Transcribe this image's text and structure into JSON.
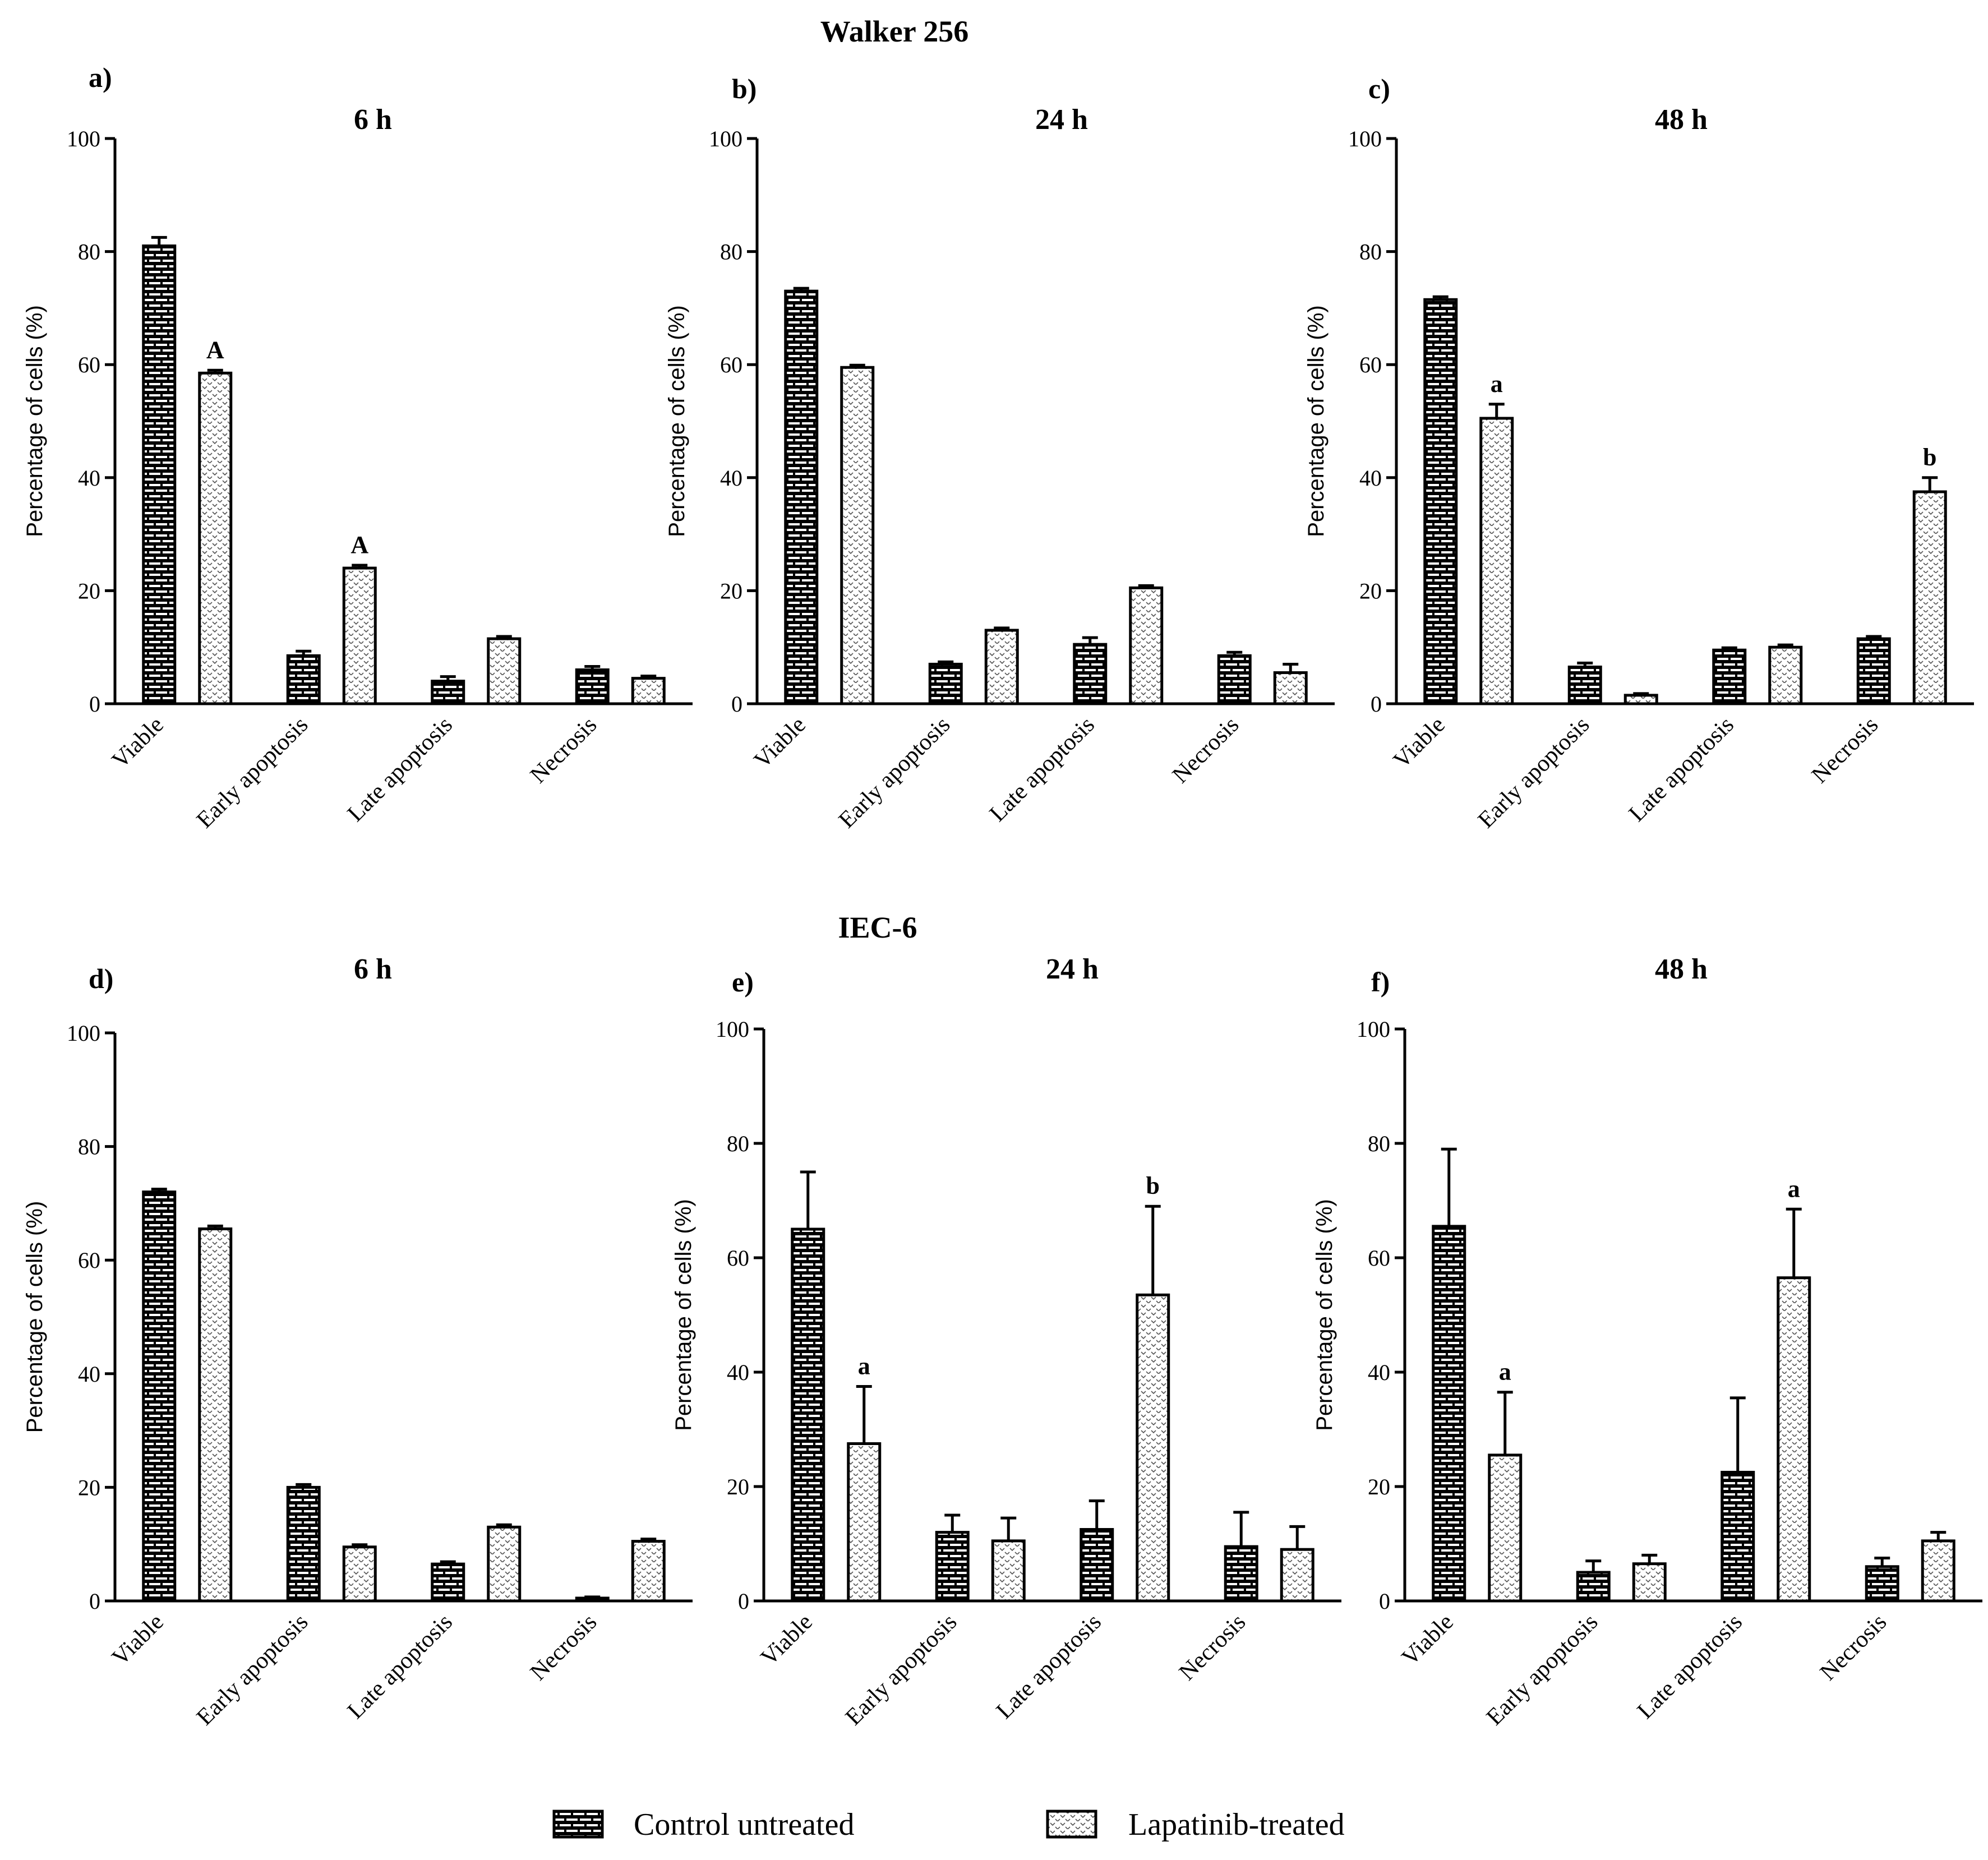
{
  "titles": {
    "top_group": "Walker 256",
    "bottom_group": "IEC-6"
  },
  "legend": {
    "control": "Control untreated",
    "treated": "Lapatinib-treated"
  },
  "colors": {
    "ink": "#000000",
    "background": "#ffffff"
  },
  "chart_data": [
    {
      "panel": "a)",
      "title": "6 h",
      "type": "bar",
      "ylabel": "Percentage of cells (%)",
      "ylim": [
        0,
        100
      ],
      "yticks": [
        0,
        20,
        40,
        60,
        80,
        100
      ],
      "categories": [
        "Viable",
        "Early apoptosis",
        "Late apoptosis",
        "Necrosis"
      ],
      "series": [
        {
          "name": "Control untreated",
          "values": [
            81,
            8.5,
            4,
            6
          ],
          "errors": [
            1.5,
            0.8,
            0.8,
            0.6
          ]
        },
        {
          "name": "Lapatinib-treated",
          "values": [
            58.5,
            24,
            11.5,
            4.5
          ],
          "errors": [
            0.5,
            0.5,
            0.4,
            0.4
          ]
        }
      ],
      "annotations": [
        {
          "series": 1,
          "category": 0,
          "text": "A"
        },
        {
          "series": 1,
          "category": 1,
          "text": "A"
        }
      ]
    },
    {
      "panel": "b)",
      "title": "24 h",
      "type": "bar",
      "ylabel": "Percentage of cells (%)",
      "ylim": [
        0,
        100
      ],
      "yticks": [
        0,
        20,
        40,
        60,
        80,
        100
      ],
      "categories": [
        "Viable",
        "Early apoptosis",
        "Late apoptosis",
        "Necrosis"
      ],
      "series": [
        {
          "name": "Control untreated",
          "values": [
            73,
            7,
            10.5,
            8.5
          ],
          "errors": [
            0.5,
            0.4,
            1.2,
            0.6
          ]
        },
        {
          "name": "Lapatinib-treated",
          "values": [
            59.5,
            13,
            20.5,
            5.5
          ],
          "errors": [
            0.4,
            0.4,
            0.4,
            1.5
          ]
        }
      ],
      "annotations": []
    },
    {
      "panel": "c)",
      "title": "48 h",
      "type": "bar",
      "ylabel": "Percentage of cells (%)",
      "ylim": [
        0,
        100
      ],
      "yticks": [
        0,
        20,
        40,
        60,
        80,
        100
      ],
      "categories": [
        "Viable",
        "Early apoptosis",
        "Late apoptosis",
        "Necrosis"
      ],
      "series": [
        {
          "name": "Control untreated",
          "values": [
            71.5,
            6.5,
            9.5,
            11.5
          ],
          "errors": [
            0.5,
            0.7,
            0.4,
            0.4
          ]
        },
        {
          "name": "Lapatinib-treated",
          "values": [
            50.5,
            1.5,
            10,
            37.5
          ],
          "errors": [
            2.5,
            0.3,
            0.4,
            2.5
          ]
        }
      ],
      "annotations": [
        {
          "series": 1,
          "category": 0,
          "text": "a"
        },
        {
          "series": 1,
          "category": 3,
          "text": "b"
        }
      ]
    },
    {
      "panel": "d)",
      "title": "6 h",
      "type": "bar",
      "ylabel": "Percentage of cells (%)",
      "ylim": [
        0,
        100
      ],
      "yticks": [
        0,
        20,
        40,
        60,
        80,
        100
      ],
      "categories": [
        "Viable",
        "Early apoptosis",
        "Late apoptosis",
        "Necrosis"
      ],
      "series": [
        {
          "name": "Control untreated",
          "values": [
            72,
            20,
            6.5,
            0.5
          ],
          "errors": [
            0.5,
            0.5,
            0.4,
            0.2
          ]
        },
        {
          "name": "Lapatinib-treated",
          "values": [
            65.5,
            9.5,
            13,
            10.5
          ],
          "errors": [
            0.5,
            0.4,
            0.4,
            0.4
          ]
        }
      ],
      "annotations": []
    },
    {
      "panel": "e)",
      "title": "24 h",
      "type": "bar",
      "ylabel": "Percentage of cells (%)",
      "ylim": [
        0,
        100
      ],
      "yticks": [
        0,
        20,
        40,
        60,
        80,
        100
      ],
      "categories": [
        "Viable",
        "Early apoptosis",
        "Late apoptosis",
        "Necrosis"
      ],
      "series": [
        {
          "name": "Control untreated",
          "values": [
            65,
            12,
            12.5,
            9.5
          ],
          "errors": [
            10,
            3,
            5,
            6
          ]
        },
        {
          "name": "Lapatinib-treated",
          "values": [
            27.5,
            10.5,
            53.5,
            9
          ],
          "errors": [
            10,
            4,
            15.5,
            4
          ]
        }
      ],
      "annotations": [
        {
          "series": 1,
          "category": 0,
          "text": "a"
        },
        {
          "series": 1,
          "category": 2,
          "text": "b"
        }
      ]
    },
    {
      "panel": "f)",
      "title": "48 h",
      "type": "bar",
      "ylabel": "Percentage of cells (%)",
      "ylim": [
        0,
        100
      ],
      "yticks": [
        0,
        20,
        40,
        60,
        80,
        100
      ],
      "categories": [
        "Viable",
        "Early apoptosis",
        "Late apoptosis",
        "Necrosis"
      ],
      "series": [
        {
          "name": "Control untreated",
          "values": [
            65.5,
            5,
            22.5,
            6
          ],
          "errors": [
            13.5,
            2,
            13,
            1.5
          ]
        },
        {
          "name": "Lapatinib-treated",
          "values": [
            25.5,
            6.5,
            56.5,
            10.5
          ],
          "errors": [
            11,
            1.5,
            12,
            1.5
          ]
        }
      ],
      "annotations": [
        {
          "series": 1,
          "category": 0,
          "text": "a"
        },
        {
          "series": 1,
          "category": 2,
          "text": "a"
        }
      ]
    }
  ]
}
